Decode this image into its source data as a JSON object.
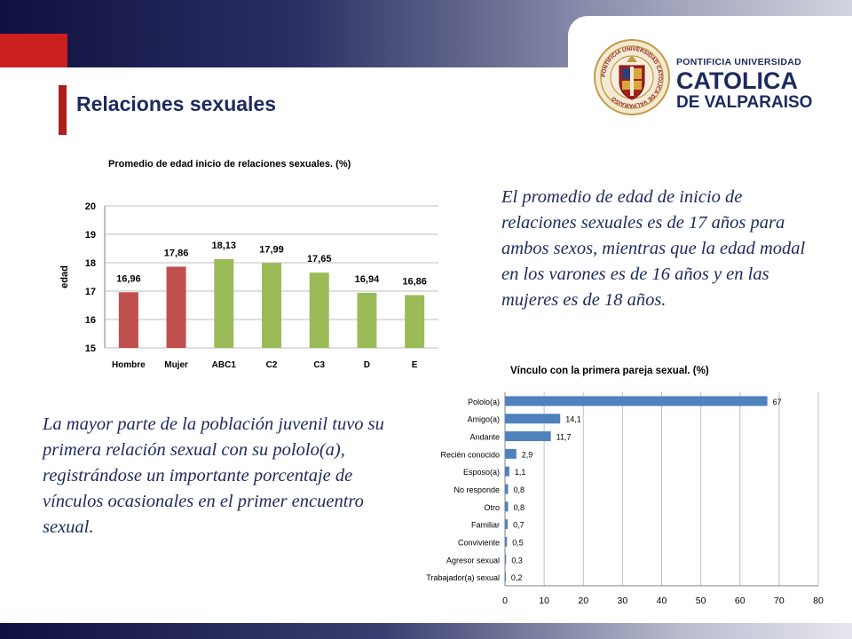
{
  "slide": {
    "title": "Relaciones sexuales",
    "logo": {
      "line1": "PONTIFICIA UNIVERSIDAD",
      "line2": "CATOLICA",
      "line3": "DE VALPARAISO",
      "seal_text": "PONTIFICIA UNIVERSIDAD CATOLICA DE VALPARAISO"
    },
    "paragraph_right": "El promedio de edad de inicio de relaciones sexuales es de 17 años para ambos sexos, mientras que la edad modal en los varones es de 16 años y en las mujeres es de 18 años.",
    "paragraph_left": "La mayor parte de la población juvenil tuvo su primera relación sexual con su pololo(a), registrándose un importante porcentaje de vínculos ocasionales en el primer encuentro sexual."
  },
  "colors": {
    "navy": "#1c2a5e",
    "red_bar": "#c0504d",
    "green_bar": "#9bbb59",
    "blue_bar": "#4f81bd"
  },
  "chart_data": [
    {
      "type": "bar",
      "title": "Promedio de edad inicio de relaciones sexuales. (%)",
      "xlabel": "",
      "ylabel": "edad",
      "categories": [
        "Hombre",
        "Mujer",
        "ABC1",
        "C2",
        "C3",
        "D",
        "E"
      ],
      "values": [
        16.96,
        17.86,
        18.13,
        17.99,
        17.65,
        16.94,
        16.86
      ],
      "value_labels": [
        "16,96",
        "17,86",
        "18,13",
        "17,99",
        "17,65",
        "16,94",
        "16,86"
      ],
      "bar_colors": [
        "#c0504d",
        "#c0504d",
        "#9bbb59",
        "#9bbb59",
        "#9bbb59",
        "#9bbb59",
        "#9bbb59"
      ],
      "ylim": [
        15,
        20
      ],
      "yticks": [
        "15",
        "16",
        "17",
        "18",
        "19",
        "20"
      ],
      "grid": true,
      "legend": "none"
    },
    {
      "type": "bar",
      "orientation": "horizontal",
      "title": "Vínculo con la primera pareja sexual. (%)",
      "categories": [
        "Pololo(a)",
        "Amigo(a)",
        "Andante",
        "Recién conocido",
        "Esposo(a)",
        "No responde",
        "Otro",
        "Familiar",
        "Conviviente",
        "Agresor sexual",
        "Trabajador(a) sexual"
      ],
      "values": [
        67,
        14.1,
        11.7,
        2.9,
        1.1,
        0.8,
        0.8,
        0.7,
        0.5,
        0.3,
        0.2
      ],
      "value_labels": [
        "67",
        "14,1",
        "11,7",
        "2,9",
        "1,1",
        "0,8",
        "0,8",
        "0,7",
        "0,5",
        "0,3",
        "0,2"
      ],
      "xlim": [
        0,
        80
      ],
      "xticks": [
        "0",
        "10",
        "20",
        "30",
        "40",
        "50",
        "60",
        "70",
        "80"
      ],
      "grid": true,
      "legend": "none",
      "bar_color": "#4f81bd"
    }
  ]
}
